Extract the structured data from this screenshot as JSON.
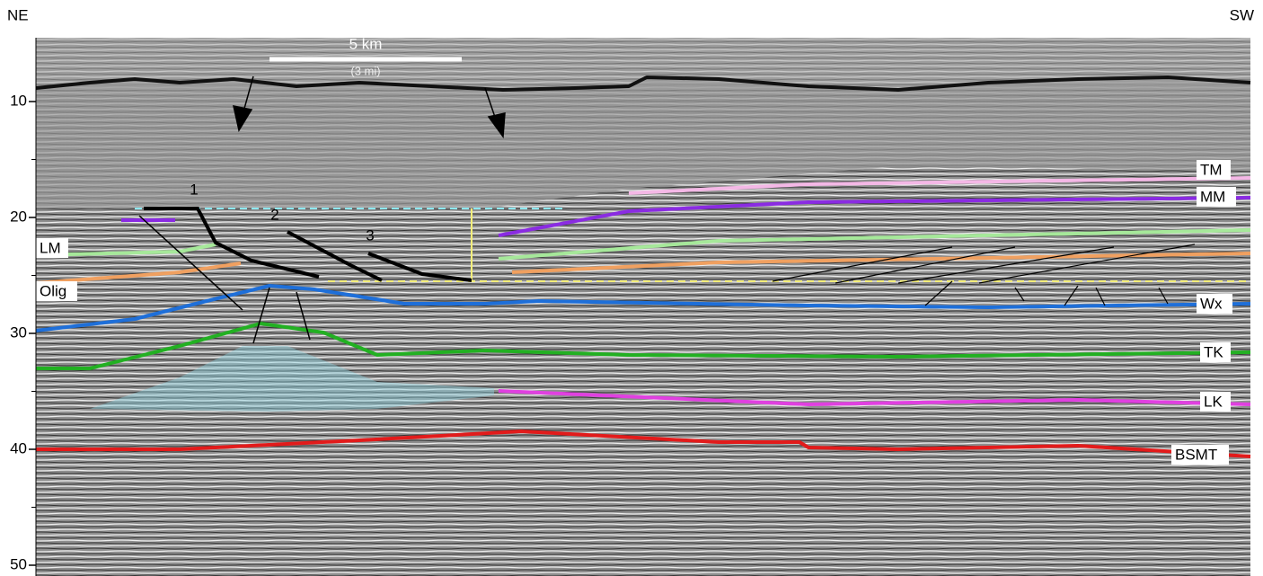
{
  "header": {
    "left": "NE",
    "right": "SW"
  },
  "scale_bar": {
    "label": "5 km",
    "sublabel": "(3 mi)"
  },
  "axis": {
    "ticks": [
      10,
      20,
      30,
      40,
      50
    ]
  },
  "fault_labels": [
    "1",
    "2",
    "3"
  ],
  "horizons": {
    "left": [
      "LM",
      "Olig"
    ],
    "right": [
      "TM",
      "MM",
      "Wx",
      "TK",
      "LK",
      "BSMT"
    ]
  }
}
